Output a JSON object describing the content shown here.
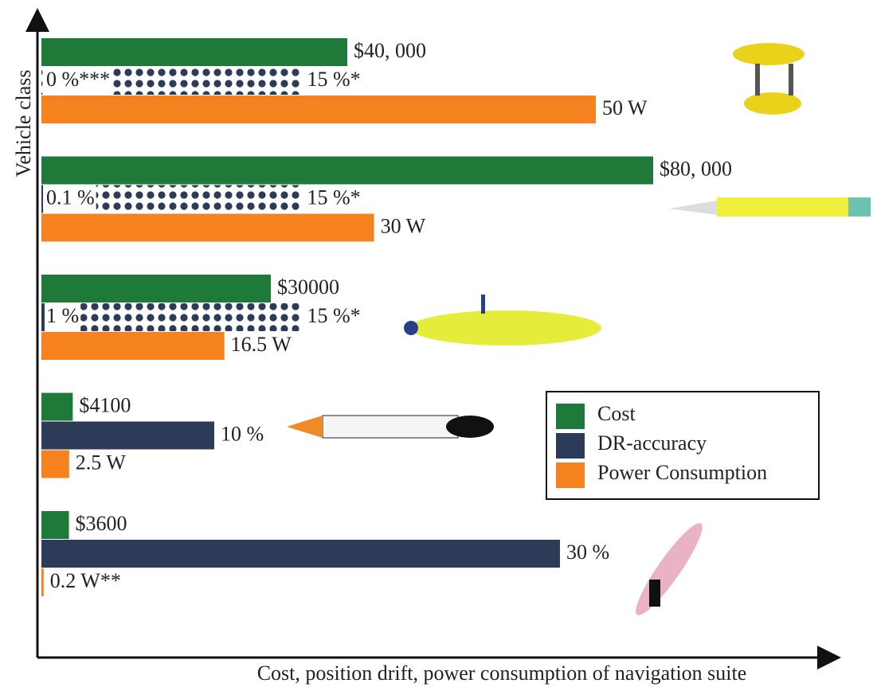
{
  "chart_data": {
    "type": "bar",
    "orientation": "horizontal",
    "x_label": "Cost, position drift, power consumption of navigation suite",
    "y_label": "Vehicle class",
    "categories": [
      null,
      null,
      null,
      null,
      null
    ],
    "series": [
      {
        "name": "Cost",
        "color": "#1f7a3a",
        "values": [
          40000,
          80000,
          30000,
          4100,
          3600
        ],
        "value_labels": [
          "$40, 000",
          "$80, 000",
          "$30000",
          "$4100",
          "$3600"
        ]
      },
      {
        "name": "DR-accuracy",
        "color": "#2c3b57",
        "values": [
          0,
          0.1,
          1,
          10,
          30
        ],
        "value_labels": [
          "0 %***",
          "0.1 %",
          "1 %",
          "10 %",
          "30 %"
        ],
        "upper": [
          15,
          15,
          15,
          null,
          null
        ],
        "upper_labels": [
          "15 %*",
          "15 %*",
          "15 %*",
          null,
          null
        ]
      },
      {
        "name": "Power Consumption",
        "color": "#f5821f",
        "values": [
          50,
          30,
          16.5,
          2.5,
          0.2
        ],
        "value_labels": [
          "50 W",
          "30 W",
          "16.5 W",
          "2.5 W",
          "0.2 W**"
        ]
      }
    ],
    "legend": "lower right"
  }
}
